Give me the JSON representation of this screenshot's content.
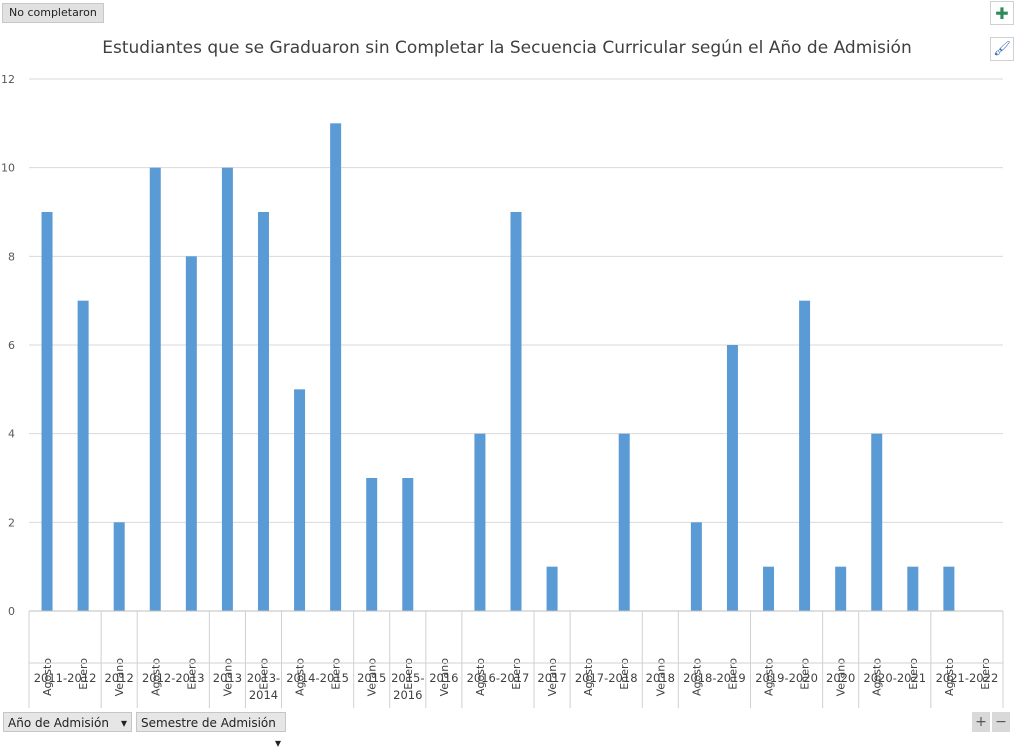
{
  "ui": {
    "series_tag": "No completaron",
    "add_icon": "plus-icon",
    "style_icon": "paintbrush-icon",
    "filter_year_label": "Año de Admisión",
    "filter_year_icon": "▾",
    "filter_semester_label": "Semestre de Admisión",
    "filter_semester_icon": "▾",
    "zoom_in": "+",
    "zoom_out": "−"
  },
  "chart_data": {
    "type": "bar",
    "title": "Estudiantes que se Graduaron sin Completar la Secuencia Curricular según el Año de Admisión",
    "ylim": [
      0,
      12
    ],
    "yticks": [
      0,
      2,
      4,
      6,
      8,
      10,
      12
    ],
    "grid": true,
    "bar_color": "#5b9bd5",
    "groups": [
      {
        "year": "2011-2012",
        "items": [
          {
            "sem": "Agosto",
            "value": 9
          },
          {
            "sem": "Enero",
            "value": 7
          }
        ]
      },
      {
        "year": "2012",
        "items": [
          {
            "sem": "Verano",
            "value": 2
          }
        ]
      },
      {
        "year": "2012-2013",
        "items": [
          {
            "sem": "Agosto",
            "value": 10
          },
          {
            "sem": "Enero",
            "value": 8
          }
        ]
      },
      {
        "year": "2013",
        "items": [
          {
            "sem": "Verano",
            "value": 10
          }
        ]
      },
      {
        "year": "2013-2014",
        "items": [
          {
            "sem": "Enero",
            "value": 9
          }
        ]
      },
      {
        "year": "2014-2015",
        "items": [
          {
            "sem": "Agosto",
            "value": 5
          },
          {
            "sem": "Enero",
            "value": 11
          }
        ]
      },
      {
        "year": "2015",
        "items": [
          {
            "sem": "Verano",
            "value": 3
          }
        ]
      },
      {
        "year": "2015-2016",
        "items": [
          {
            "sem": "Enero",
            "value": 3
          }
        ]
      },
      {
        "year": "2016",
        "items": [
          {
            "sem": "Verano",
            "value": 0
          }
        ]
      },
      {
        "year": "2016-2017",
        "items": [
          {
            "sem": "Agosto",
            "value": 4
          },
          {
            "sem": "Enero",
            "value": 9
          }
        ]
      },
      {
        "year": "2017",
        "items": [
          {
            "sem": "Verano",
            "value": 1
          }
        ]
      },
      {
        "year": "2017-2018",
        "items": [
          {
            "sem": "Agosto",
            "value": 0
          },
          {
            "sem": "Enero",
            "value": 4
          }
        ]
      },
      {
        "year": "2018",
        "items": [
          {
            "sem": "Verano",
            "value": 0
          }
        ]
      },
      {
        "year": "2018-2019",
        "items": [
          {
            "sem": "Agosto",
            "value": 2
          },
          {
            "sem": "Enero",
            "value": 6
          }
        ]
      },
      {
        "year": "2019-2020",
        "items": [
          {
            "sem": "Agosto",
            "value": 1
          },
          {
            "sem": "Enero",
            "value": 7
          }
        ]
      },
      {
        "year": "2020",
        "items": [
          {
            "sem": "Verano",
            "value": 1
          }
        ]
      },
      {
        "year": "2020-2021",
        "items": [
          {
            "sem": "Agosto",
            "value": 4
          },
          {
            "sem": "Enero",
            "value": 1
          }
        ]
      },
      {
        "year": "2021-2022",
        "items": [
          {
            "sem": "Agosto",
            "value": 1
          },
          {
            "sem": "Enero",
            "value": 0
          }
        ]
      }
    ]
  }
}
